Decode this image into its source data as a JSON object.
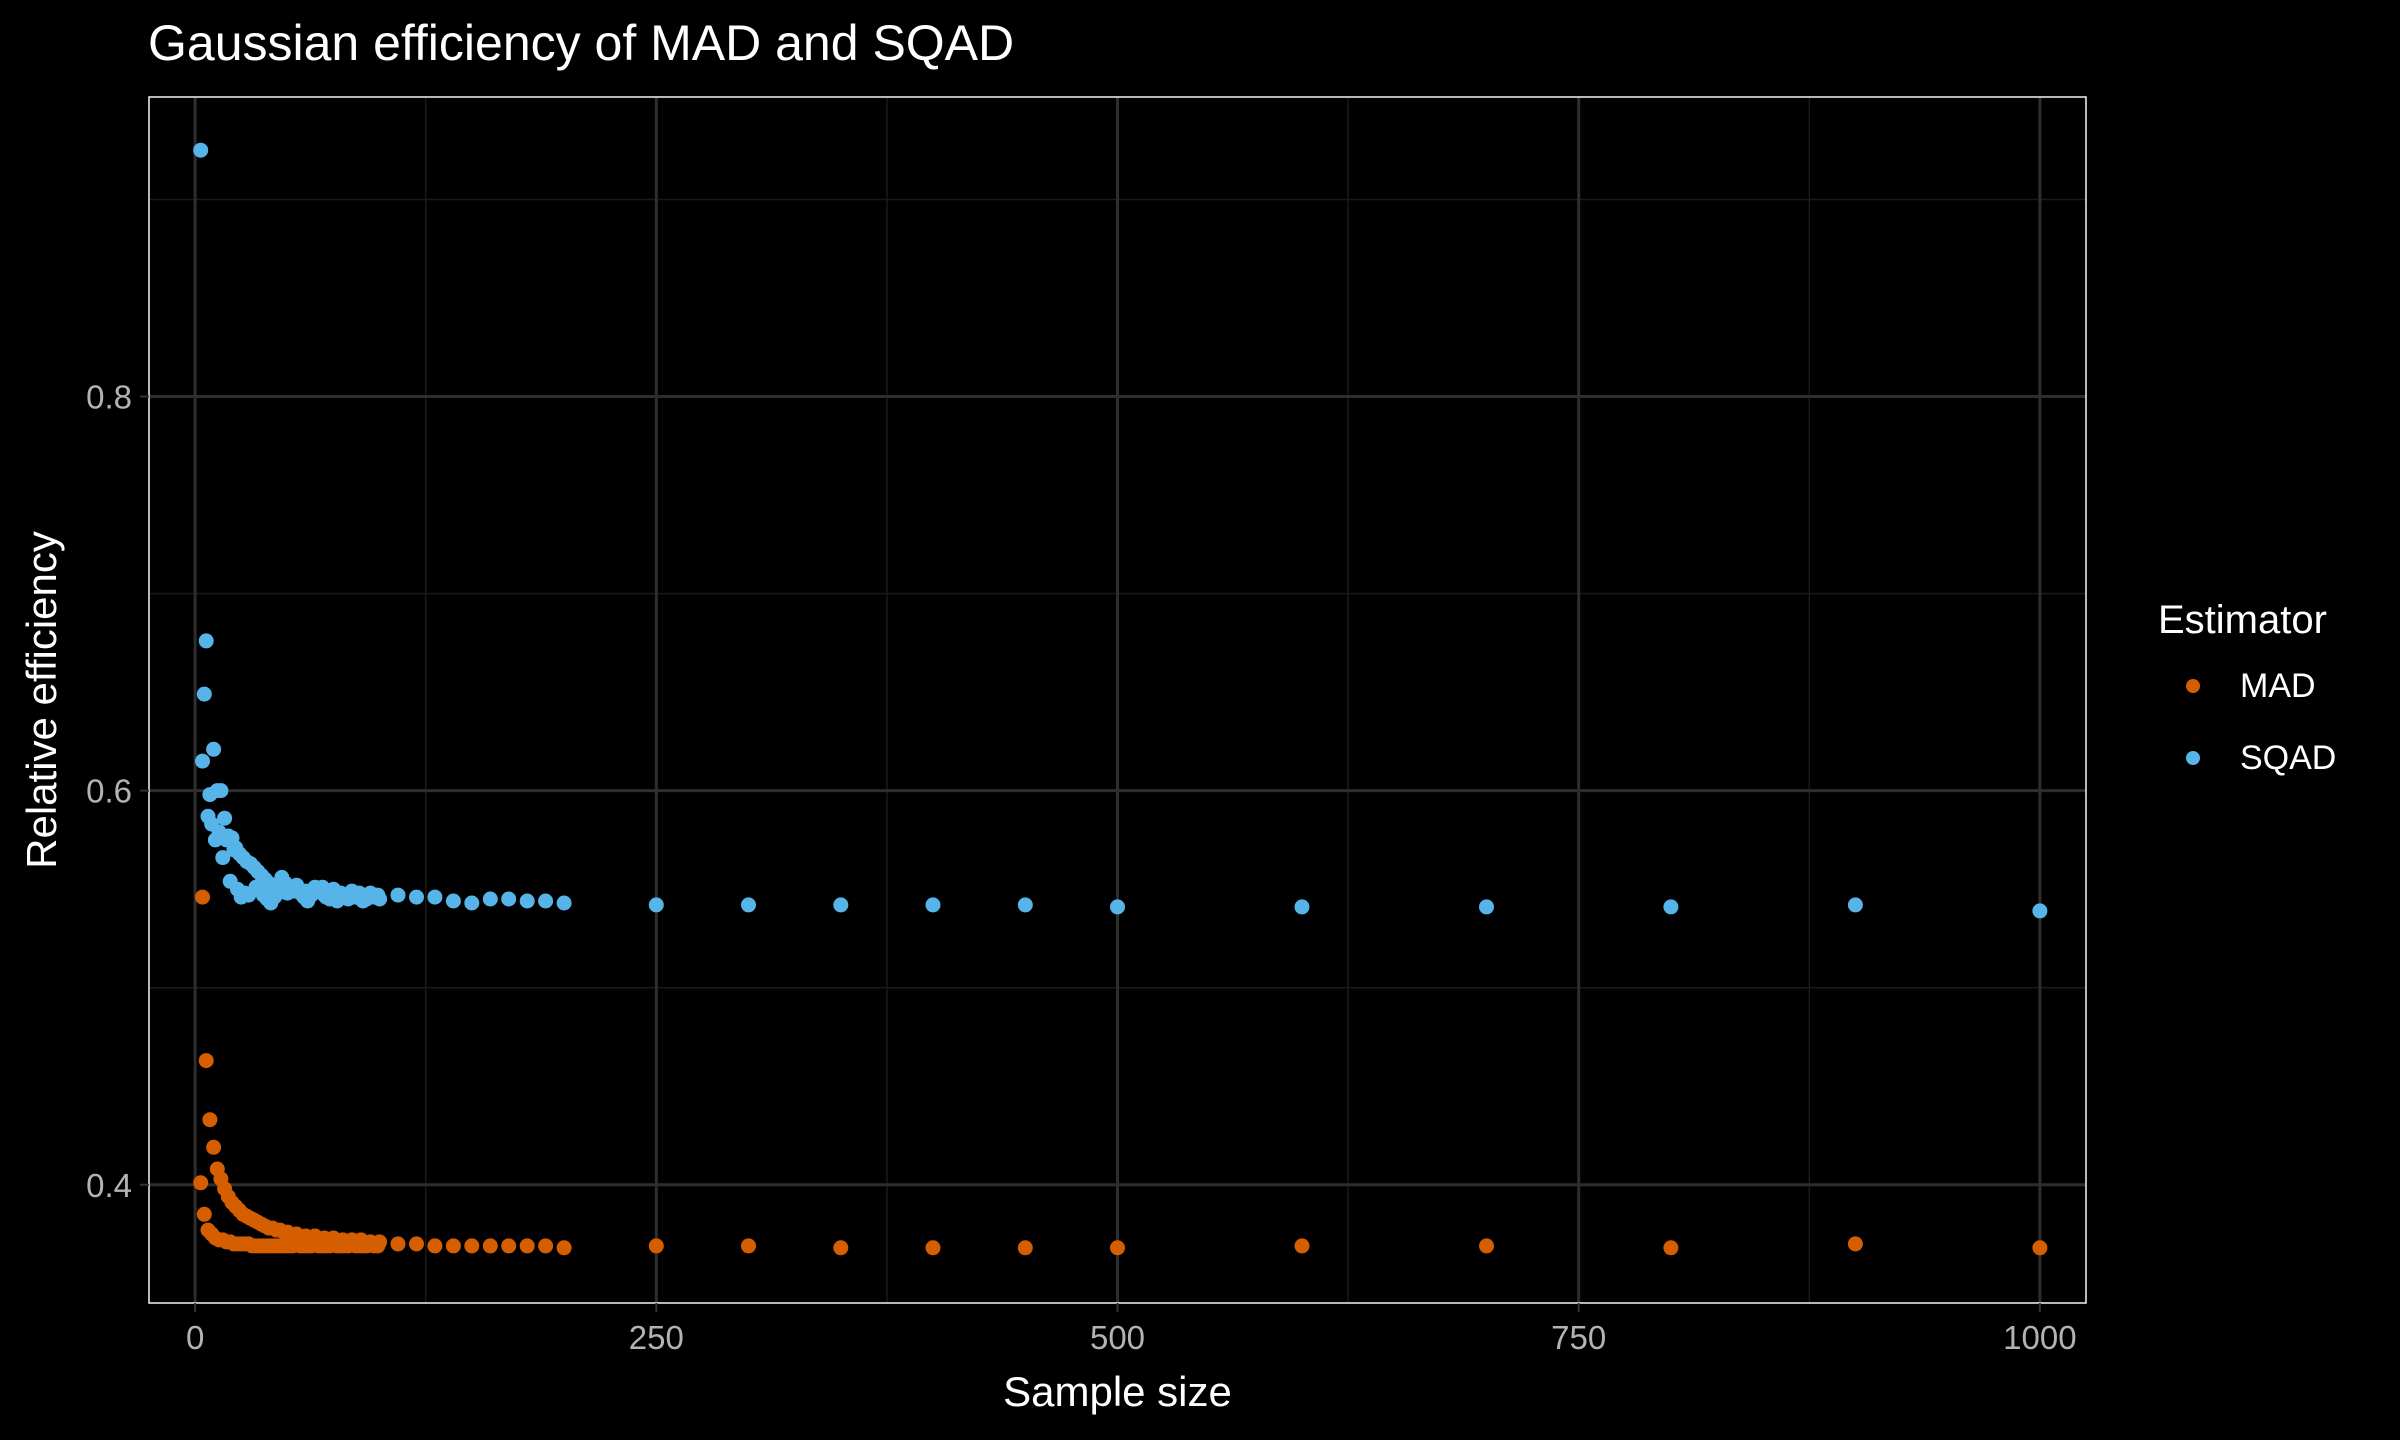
{
  "chart_data": {
    "type": "scatter",
    "title": "Gaussian efficiency of MAD and SQAD",
    "xlabel": "Sample size",
    "ylabel": "Relative efficiency",
    "xlim": [
      -25,
      1025
    ],
    "ylim": [
      0.34,
      0.952
    ],
    "x_ticks": [
      0,
      250,
      500,
      750,
      1000
    ],
    "x_tick_labels": [
      "0",
      "250",
      "500",
      "750",
      "1000"
    ],
    "y_ticks": [
      0.4,
      0.6,
      0.8
    ],
    "y_tick_labels": [
      "0.4",
      "0.6",
      "0.8"
    ],
    "grid": true,
    "legend": {
      "title": "Estimator",
      "position": "right"
    },
    "series": [
      {
        "name": "MAD",
        "color": "#D55E00",
        "points": [
          [
            3,
            0.401
          ],
          [
            4,
            0.546
          ],
          [
            5,
            0.385
          ],
          [
            6,
            0.463
          ],
          [
            7,
            0.377
          ],
          [
            8,
            0.433
          ],
          [
            9,
            0.375
          ],
          [
            10,
            0.419
          ],
          [
            11,
            0.373
          ],
          [
            12,
            0.408
          ],
          [
            13,
            0.372
          ],
          [
            14,
            0.403
          ],
          [
            15,
            0.372
          ],
          [
            16,
            0.398
          ],
          [
            17,
            0.371
          ],
          [
            18,
            0.394
          ],
          [
            19,
            0.371
          ],
          [
            20,
            0.391
          ],
          [
            21,
            0.37
          ],
          [
            22,
            0.389
          ],
          [
            23,
            0.37
          ],
          [
            24,
            0.387
          ],
          [
            25,
            0.37
          ],
          [
            26,
            0.385
          ],
          [
            27,
            0.37
          ],
          [
            28,
            0.384
          ],
          [
            29,
            0.37
          ],
          [
            30,
            0.383
          ],
          [
            32,
            0.382
          ],
          [
            34,
            0.381
          ],
          [
            36,
            0.38
          ],
          [
            38,
            0.379
          ],
          [
            40,
            0.378
          ],
          [
            42,
            0.378
          ],
          [
            44,
            0.377
          ],
          [
            46,
            0.377
          ],
          [
            48,
            0.376
          ],
          [
            50,
            0.376
          ],
          [
            55,
            0.375
          ],
          [
            60,
            0.374
          ],
          [
            65,
            0.374
          ],
          [
            70,
            0.373
          ],
          [
            75,
            0.373
          ],
          [
            80,
            0.372
          ],
          [
            85,
            0.372
          ],
          [
            90,
            0.372
          ],
          [
            95,
            0.371
          ],
          [
            100,
            0.371
          ],
          [
            31,
            0.369
          ],
          [
            33,
            0.369
          ],
          [
            35,
            0.369
          ],
          [
            37,
            0.369
          ],
          [
            39,
            0.369
          ],
          [
            41,
            0.369
          ],
          [
            43,
            0.369
          ],
          [
            45,
            0.369
          ],
          [
            47,
            0.369
          ],
          [
            49,
            0.369
          ],
          [
            51,
            0.369
          ],
          [
            53,
            0.369
          ],
          [
            57,
            0.369
          ],
          [
            59,
            0.369
          ],
          [
            61,
            0.369
          ],
          [
            63,
            0.369
          ],
          [
            67,
            0.369
          ],
          [
            69,
            0.369
          ],
          [
            71,
            0.369
          ],
          [
            73,
            0.369
          ],
          [
            77,
            0.369
          ],
          [
            79,
            0.369
          ],
          [
            81,
            0.369
          ],
          [
            83,
            0.369
          ],
          [
            87,
            0.369
          ],
          [
            89,
            0.369
          ],
          [
            91,
            0.369
          ],
          [
            93,
            0.369
          ],
          [
            97,
            0.369
          ],
          [
            99,
            0.369
          ],
          [
            110,
            0.37
          ],
          [
            120,
            0.37
          ],
          [
            130,
            0.369
          ],
          [
            140,
            0.369
          ],
          [
            150,
            0.369
          ],
          [
            160,
            0.369
          ],
          [
            170,
            0.369
          ],
          [
            180,
            0.369
          ],
          [
            190,
            0.369
          ],
          [
            200,
            0.368
          ],
          [
            250,
            0.369
          ],
          [
            300,
            0.369
          ],
          [
            350,
            0.368
          ],
          [
            400,
            0.368
          ],
          [
            450,
            0.368
          ],
          [
            500,
            0.368
          ],
          [
            600,
            0.369
          ],
          [
            700,
            0.369
          ],
          [
            800,
            0.368
          ],
          [
            900,
            0.37
          ],
          [
            1000,
            0.368
          ]
        ]
      },
      {
        "name": "SQAD",
        "color": "#56B4E9",
        "points": [
          [
            3,
            0.925
          ],
          [
            4,
            0.615
          ],
          [
            5,
            0.649
          ],
          [
            6,
            0.676
          ],
          [
            7,
            0.587
          ],
          [
            8,
            0.598
          ],
          [
            9,
            0.583
          ],
          [
            10,
            0.621
          ],
          [
            11,
            0.575
          ],
          [
            12,
            0.6
          ],
          [
            13,
            0.579
          ],
          [
            14,
            0.6
          ],
          [
            15,
            0.566
          ],
          [
            16,
            0.586
          ],
          [
            17,
            0.575
          ],
          [
            18,
            0.577
          ],
          [
            19,
            0.554
          ],
          [
            20,
            0.576
          ],
          [
            21,
            0.57
          ],
          [
            22,
            0.571
          ],
          [
            23,
            0.55
          ],
          [
            24,
            0.568
          ],
          [
            25,
            0.546
          ],
          [
            26,
            0.566
          ],
          [
            27,
            0.548
          ],
          [
            28,
            0.564
          ],
          [
            29,
            0.547
          ],
          [
            30,
            0.563
          ],
          [
            32,
            0.561
          ],
          [
            34,
            0.559
          ],
          [
            36,
            0.557
          ],
          [
            38,
            0.555
          ],
          [
            40,
            0.553
          ],
          [
            42,
            0.552
          ],
          [
            44,
            0.551
          ],
          [
            46,
            0.55
          ],
          [
            48,
            0.549
          ],
          [
            50,
            0.548
          ],
          [
            55,
            0.552
          ],
          [
            60,
            0.549
          ],
          [
            65,
            0.551
          ],
          [
            70,
            0.547
          ],
          [
            75,
            0.55
          ],
          [
            80,
            0.546
          ],
          [
            85,
            0.549
          ],
          [
            90,
            0.545
          ],
          [
            95,
            0.548
          ],
          [
            100,
            0.545
          ],
          [
            33,
            0.551
          ],
          [
            35,
            0.55
          ],
          [
            37,
            0.547
          ],
          [
            39,
            0.545
          ],
          [
            41,
            0.543
          ],
          [
            43,
            0.546
          ],
          [
            45,
            0.548
          ],
          [
            47,
            0.556
          ],
          [
            49,
            0.553
          ],
          [
            51,
            0.551
          ],
          [
            53,
            0.549
          ],
          [
            57,
            0.548
          ],
          [
            59,
            0.546
          ],
          [
            61,
            0.544
          ],
          [
            63,
            0.547
          ],
          [
            67,
            0.549
          ],
          [
            69,
            0.551
          ],
          [
            71,
            0.546
          ],
          [
            73,
            0.545
          ],
          [
            77,
            0.544
          ],
          [
            79,
            0.548
          ],
          [
            81,
            0.547
          ],
          [
            83,
            0.545
          ],
          [
            87,
            0.546
          ],
          [
            89,
            0.548
          ],
          [
            91,
            0.544
          ],
          [
            93,
            0.545
          ],
          [
            97,
            0.546
          ],
          [
            99,
            0.547
          ],
          [
            110,
            0.547
          ],
          [
            120,
            0.546
          ],
          [
            130,
            0.546
          ],
          [
            140,
            0.544
          ],
          [
            150,
            0.543
          ],
          [
            160,
            0.545
          ],
          [
            170,
            0.545
          ],
          [
            180,
            0.544
          ],
          [
            190,
            0.544
          ],
          [
            200,
            0.543
          ],
          [
            250,
            0.542
          ],
          [
            300,
            0.542
          ],
          [
            350,
            0.542
          ],
          [
            400,
            0.542
          ],
          [
            450,
            0.542
          ],
          [
            500,
            0.541
          ],
          [
            600,
            0.541
          ],
          [
            700,
            0.541
          ],
          [
            800,
            0.541
          ],
          [
            900,
            0.542
          ],
          [
            1000,
            0.539
          ]
        ]
      }
    ]
  }
}
